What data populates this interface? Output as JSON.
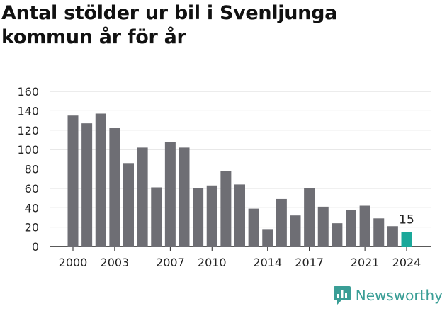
{
  "page": {
    "title_line1": "Antal stölder ur bil i Svenljunga",
    "title_line2": "kommun år för år"
  },
  "brand": {
    "name": "Newsworthy",
    "icon": "newsworthy-logo-icon",
    "color": "#3a9e96"
  },
  "chart_data": {
    "type": "bar",
    "categories": [
      "2000",
      "2001",
      "2002",
      "2003",
      "2004",
      "2005",
      "2006",
      "2007",
      "2008",
      "2009",
      "2010",
      "2011",
      "2012",
      "2013",
      "2014",
      "2015",
      "2016",
      "2017",
      "2018",
      "2019",
      "2020",
      "2021",
      "2022",
      "2023",
      "2024"
    ],
    "values": [
      135,
      127,
      137,
      122,
      86,
      102,
      61,
      108,
      102,
      60,
      63,
      78,
      64,
      39,
      18,
      49,
      32,
      60,
      41,
      24,
      38,
      42,
      29,
      21,
      15
    ],
    "x_tick_labels": [
      "2000",
      "2003",
      "2007",
      "2010",
      "2014",
      "2017",
      "2021",
      "2024"
    ],
    "ylim": [
      0,
      160
    ],
    "y_ticks": [
      0,
      20,
      40,
      60,
      80,
      100,
      120,
      140,
      160
    ],
    "grid": true,
    "bar_color": "#6e6e74",
    "highlight_color": "#1aa89a",
    "highlight_index": 24,
    "highlight_label": "15"
  }
}
